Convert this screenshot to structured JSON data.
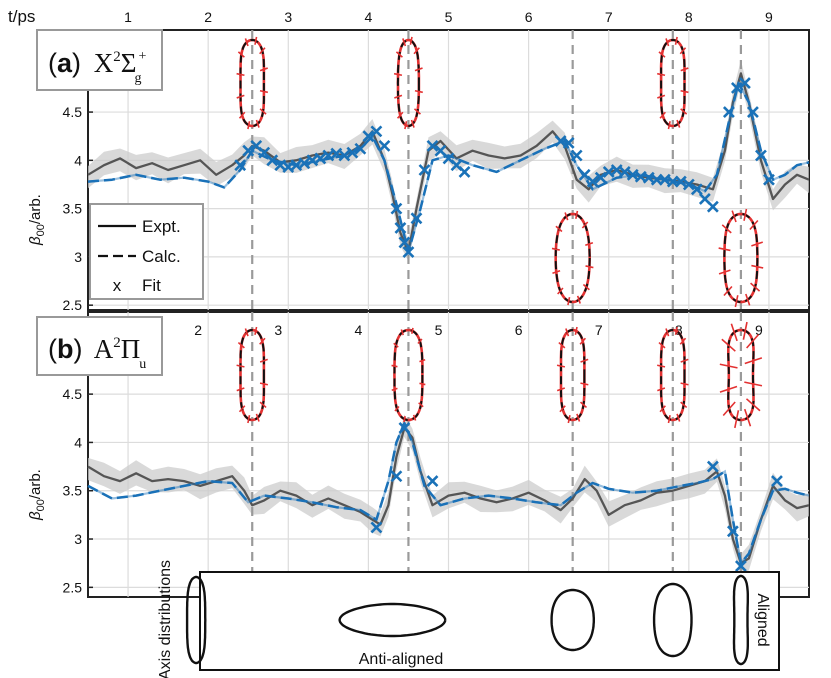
{
  "chart_data": {
    "type": "line",
    "top_axis_label": "t/ps",
    "x_ticks": [
      "1",
      "2",
      "3",
      "4",
      "5",
      "6",
      "7",
      "8",
      "9"
    ],
    "xlim": [
      0.5,
      9.5
    ],
    "panels": [
      {
        "id": "a",
        "letter": "a",
        "state": "X",
        "state_sup": "2",
        "state_sym": "Σ",
        "state_sub": "g",
        "state_sup2": "+",
        "ylabel": "β",
        "ylabel_sub": "00",
        "ylabel_suffix": "/arb.",
        "ylim": [
          2.45,
          5.35
        ],
        "y_ticks": [
          "2.5",
          "3",
          "3.5",
          "4",
          "4.5"
        ],
        "series": [
          {
            "name": "Expt.",
            "x": [
              0.5,
              0.7,
              0.9,
              1.1,
              1.3,
              1.5,
              1.7,
              1.9,
              2.1,
              2.3,
              2.45,
              2.55,
              2.7,
              2.9,
              3.1,
              3.3,
              3.5,
              3.7,
              3.9,
              4.05,
              4.2,
              4.3,
              4.4,
              4.5,
              4.6,
              4.75,
              4.9,
              5.1,
              5.3,
              5.5,
              5.7,
              5.9,
              6.1,
              6.3,
              6.45,
              6.6,
              6.75,
              6.9,
              7.1,
              7.3,
              7.5,
              7.7,
              7.9,
              8.1,
              8.3,
              8.45,
              8.55,
              8.65,
              8.75,
              8.9,
              9.05,
              9.2,
              9.35,
              9.5
            ],
            "y": [
              3.85,
              3.95,
              4.02,
              3.92,
              3.97,
              3.9,
              3.95,
              4.0,
              3.85,
              3.95,
              4.05,
              4.15,
              4.1,
              3.98,
              4.0,
              4.05,
              4.08,
              4.05,
              4.15,
              4.3,
              4.0,
              3.65,
              3.25,
              3.05,
              3.5,
              4.1,
              4.2,
              4.02,
              4.1,
              4.05,
              4.02,
              4.05,
              4.15,
              4.3,
              4.15,
              3.8,
              3.7,
              3.85,
              3.9,
              3.85,
              3.82,
              3.8,
              3.78,
              3.75,
              3.7,
              4.1,
              4.6,
              4.9,
              4.6,
              4.0,
              3.6,
              3.75,
              3.85,
              3.8
            ]
          },
          {
            "name": "Calc.",
            "x": [
              0.5,
              0.8,
              1.1,
              1.4,
              1.7,
              2.0,
              2.2,
              2.4,
              2.55,
              2.8,
              3.1,
              3.4,
              3.7,
              3.9,
              4.05,
              4.2,
              4.35,
              4.5,
              4.65,
              4.8,
              5.0,
              5.3,
              5.6,
              5.9,
              6.2,
              6.45,
              6.6,
              6.8,
              7.1,
              7.4,
              7.7,
              8.0,
              8.2,
              8.35,
              8.5,
              8.62,
              8.75,
              8.9,
              9.05,
              9.2,
              9.35,
              9.5
            ],
            "y": [
              3.78,
              3.8,
              3.85,
              3.8,
              3.82,
              3.78,
              3.72,
              3.9,
              4.1,
              4.0,
              3.95,
              4.0,
              4.05,
              4.12,
              4.25,
              4.0,
              3.55,
              3.05,
              3.5,
              4.0,
              4.05,
              3.95,
              3.88,
              4.0,
              4.12,
              4.2,
              3.95,
              3.7,
              3.82,
              3.85,
              3.8,
              3.75,
              3.68,
              3.85,
              4.4,
              4.8,
              4.6,
              4.1,
              3.8,
              3.85,
              3.95,
              3.98
            ]
          },
          {
            "name": "Fit",
            "x": [
              2.4,
              2.5,
              2.6,
              2.7,
              2.8,
              2.9,
              3.0,
              3.1,
              3.2,
              3.3,
              3.4,
              3.5,
              3.6,
              3.7,
              3.8,
              3.9,
              4.0,
              4.1,
              4.2,
              4.35,
              4.4,
              4.45,
              4.5,
              4.6,
              4.7,
              4.8,
              4.9,
              5.0,
              5.1,
              5.2,
              6.4,
              6.5,
              6.6,
              6.7,
              6.8,
              6.9,
              7.0,
              7.1,
              7.2,
              7.3,
              7.4,
              7.5,
              7.6,
              7.7,
              7.8,
              7.9,
              8.0,
              8.1,
              8.2,
              8.3,
              8.5,
              8.6,
              8.7,
              8.8,
              8.9,
              9.0
            ],
            "y": [
              3.95,
              4.1,
              4.15,
              4.08,
              4.0,
              3.95,
              3.93,
              3.95,
              3.97,
              4.0,
              4.02,
              4.05,
              4.07,
              4.05,
              4.08,
              4.12,
              4.25,
              4.3,
              4.15,
              3.5,
              3.3,
              3.15,
              3.05,
              3.4,
              3.9,
              4.15,
              4.1,
              4.02,
              3.95,
              3.88,
              4.2,
              4.18,
              4.05,
              3.85,
              3.78,
              3.82,
              3.88,
              3.9,
              3.88,
              3.85,
              3.83,
              3.82,
              3.8,
              3.8,
              3.78,
              3.78,
              3.75,
              3.7,
              3.6,
              3.52,
              4.5,
              4.75,
              4.8,
              4.5,
              4.05,
              3.8
            ]
          }
        ],
        "reference_times": [
          2.55,
          4.5,
          6.55,
          7.8,
          8.65
        ]
      },
      {
        "id": "b",
        "letter": "b",
        "state": "A",
        "state_sup": "2",
        "state_sym": "Π",
        "state_sub": "u",
        "state_sup2": "",
        "ylabel": "β",
        "ylabel_sub": "00",
        "ylabel_suffix": "/arb.",
        "ylim": [
          2.4,
          5.35
        ],
        "y_ticks": [
          "2.5",
          "3",
          "3.5",
          "4",
          "4.5"
        ],
        "series": [
          {
            "name": "Expt.",
            "x": [
              0.5,
              0.7,
              0.9,
              1.1,
              1.3,
              1.5,
              1.7,
              1.9,
              2.1,
              2.3,
              2.45,
              2.55,
              2.7,
              2.9,
              3.1,
              3.3,
              3.5,
              3.7,
              3.9,
              4.05,
              4.15,
              4.25,
              4.35,
              4.45,
              4.55,
              4.65,
              4.8,
              5.0,
              5.2,
              5.4,
              5.6,
              5.8,
              6.0,
              6.2,
              6.4,
              6.55,
              6.7,
              6.85,
              7.0,
              7.2,
              7.4,
              7.6,
              7.8,
              8.0,
              8.2,
              8.35,
              8.45,
              8.55,
              8.65,
              8.75,
              8.9,
              9.05,
              9.2,
              9.35,
              9.5
            ],
            "y": [
              3.75,
              3.65,
              3.6,
              3.68,
              3.6,
              3.62,
              3.6,
              3.55,
              3.6,
              3.65,
              3.5,
              3.35,
              3.4,
              3.5,
              3.45,
              3.35,
              3.42,
              3.35,
              3.28,
              3.2,
              3.15,
              3.35,
              3.85,
              4.15,
              4.05,
              3.7,
              3.35,
              3.45,
              3.48,
              3.42,
              3.38,
              3.42,
              3.48,
              3.4,
              3.3,
              3.42,
              3.62,
              3.5,
              3.25,
              3.35,
              3.4,
              3.48,
              3.5,
              3.55,
              3.6,
              3.7,
              3.45,
              3.0,
              2.75,
              2.8,
              3.2,
              3.55,
              3.4,
              3.32,
              3.35
            ]
          },
          {
            "name": "Calc.",
            "x": [
              0.5,
              0.8,
              1.1,
              1.4,
              1.7,
              2.0,
              2.3,
              2.5,
              2.7,
              3.0,
              3.3,
              3.6,
              3.9,
              4.1,
              4.25,
              4.35,
              4.45,
              4.55,
              4.7,
              4.9,
              5.2,
              5.5,
              5.8,
              6.1,
              6.4,
              6.6,
              6.8,
              7.0,
              7.3,
              7.6,
              7.9,
              8.1,
              8.3,
              8.45,
              8.55,
              8.65,
              8.75,
              8.9,
              9.05,
              9.2,
              9.35,
              9.5
            ],
            "y": [
              3.55,
              3.42,
              3.45,
              3.5,
              3.55,
              3.6,
              3.58,
              3.38,
              3.45,
              3.42,
              3.38,
              3.33,
              3.3,
              3.2,
              3.6,
              4.0,
              4.2,
              4.0,
              3.55,
              3.35,
              3.42,
              3.45,
              3.42,
              3.38,
              3.35,
              3.48,
              3.58,
              3.52,
              3.48,
              3.5,
              3.55,
              3.58,
              3.62,
              3.7,
              3.2,
              2.75,
              2.85,
              3.2,
              3.5,
              3.52,
              3.48,
              3.45
            ]
          },
          {
            "name": "Fit",
            "x": [
              4.1,
              4.35,
              4.45,
              4.8,
              8.3,
              8.55,
              8.65,
              9.1
            ],
            "y": [
              3.12,
              3.65,
              4.15,
              3.6,
              3.75,
              3.08,
              2.72,
              3.6
            ]
          }
        ],
        "reference_times": [
          2.55,
          4.5,
          6.55,
          7.8,
          8.65
        ]
      }
    ],
    "legend": {
      "placement": "lower-left of panel a",
      "entries": [
        "Expt.",
        "Calc.",
        "Fit"
      ],
      "fit_marker": "x"
    },
    "axis_distributions": {
      "side_label_left": "Axis distributions",
      "side_label_right": "Aligned",
      "bottom_label": "Anti-aligned"
    },
    "colors": {
      "expt": "#555555",
      "calc": "#1a72b8",
      "fit": "#1a72b8",
      "band": "#cccccc",
      "polar_red": "#e33131",
      "polar_black": "#111111",
      "refline": "#9a9a9a"
    }
  }
}
